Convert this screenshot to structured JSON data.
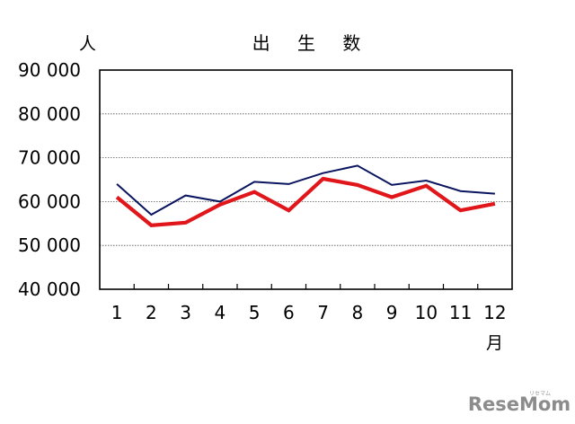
{
  "chart_data": {
    "type": "line",
    "title": "出 生 数",
    "ylabel": "人",
    "xlabel": "月",
    "categories": [
      "1",
      "2",
      "3",
      "4",
      "5",
      "6",
      "7",
      "8",
      "9",
      "10",
      "11",
      "12"
    ],
    "ylim": [
      40000,
      90000
    ],
    "yticks": [
      40000,
      50000,
      60000,
      70000,
      80000,
      90000
    ],
    "ytick_labels": [
      "40 000",
      "50 000",
      "60 000",
      "70 000",
      "80 000",
      "90 000"
    ],
    "grid": true,
    "series": [
      {
        "values": [
          64000,
          57000,
          61400,
          60000,
          64500,
          64000,
          66500,
          68200,
          63800,
          64800,
          62400,
          61800
        ],
        "color": "#0a1560"
      },
      {
        "values": [
          61000,
          54600,
          55200,
          59300,
          62200,
          58000,
          65200,
          63800,
          61000,
          63600,
          58000,
          59500
        ],
        "color": "#e0161b"
      }
    ]
  },
  "watermark": {
    "text": "ReseMom",
    "ruby": "リセマム"
  }
}
